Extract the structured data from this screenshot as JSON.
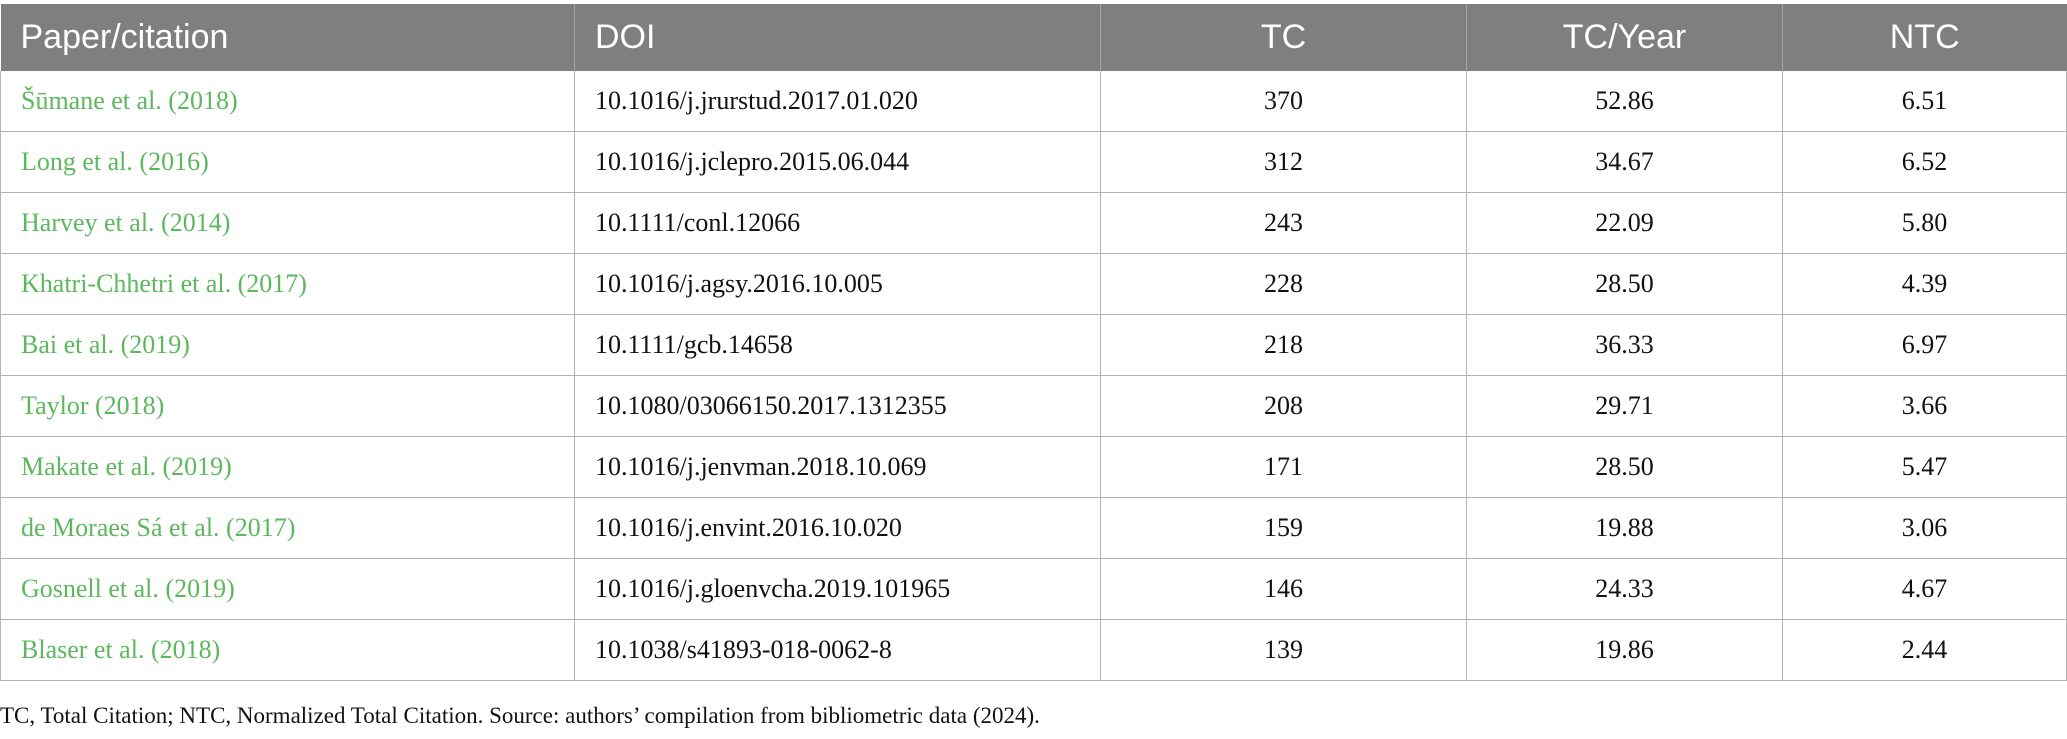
{
  "table": {
    "headers": [
      "Paper/citation",
      "DOI",
      "TC",
      "TC/Year",
      "NTC"
    ],
    "rows": [
      {
        "paper": "Šūmane et al. (2018)",
        "doi": "10.1016/j.jrurstud.2017.01.020",
        "tc": "370",
        "tc_year": "52.86",
        "ntc": "6.51"
      },
      {
        "paper": "Long et al. (2016)",
        "doi": "10.1016/j.jclepro.2015.06.044",
        "tc": "312",
        "tc_year": "34.67",
        "ntc": "6.52"
      },
      {
        "paper": "Harvey et al. (2014)",
        "doi": "10.1111/conl.12066",
        "tc": "243",
        "tc_year": "22.09",
        "ntc": "5.80"
      },
      {
        "paper": "Khatri-Chhetri et al. (2017)",
        "doi": "10.1016/j.agsy.2016.10.005",
        "tc": "228",
        "tc_year": "28.50",
        "ntc": "4.39"
      },
      {
        "paper": "Bai et al. (2019)",
        "doi": "10.1111/gcb.14658",
        "tc": "218",
        "tc_year": "36.33",
        "ntc": "6.97"
      },
      {
        "paper": "Taylor (2018)",
        "doi": "10.1080/03066150.2017.1312355",
        "tc": "208",
        "tc_year": "29.71",
        "ntc": "3.66"
      },
      {
        "paper": "Makate et al. (2019)",
        "doi": "10.1016/j.jenvman.2018.10.069",
        "tc": "171",
        "tc_year": "28.50",
        "ntc": "5.47"
      },
      {
        "paper": "de Moraes Sá et al. (2017)",
        "doi": "10.1016/j.envint.2016.10.020",
        "tc": "159",
        "tc_year": "19.88",
        "ntc": "3.06"
      },
      {
        "paper": "Gosnell et al. (2019)",
        "doi": "10.1016/j.gloenvcha.2019.101965",
        "tc": "146",
        "tc_year": "24.33",
        "ntc": "4.67"
      },
      {
        "paper": "Blaser et al. (2018)",
        "doi": "10.1038/s41893-018-0062-8",
        "tc": "139",
        "tc_year": "19.86",
        "ntc": "2.44"
      }
    ]
  },
  "footnote": "TC, Total Citation; NTC, Normalized Total Citation. Source: authors’ compilation from bibliometric data (2024).",
  "colors": {
    "header_bg": "#7f7f7f",
    "link_green": "#5cb85c",
    "grid": "#b3b3b3"
  }
}
